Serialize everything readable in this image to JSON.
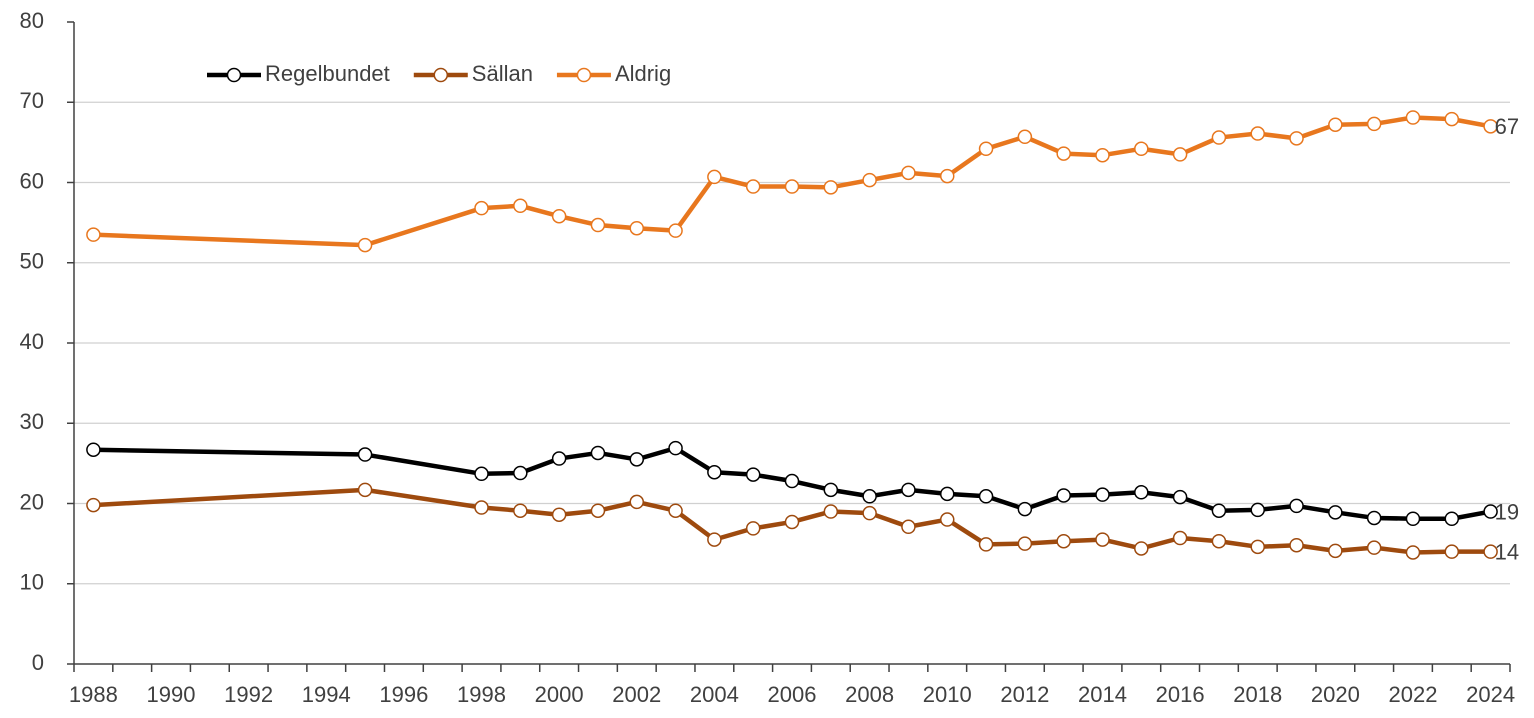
{
  "chart_data": {
    "type": "line",
    "x": [
      1988,
      1995,
      1998,
      1999,
      2000,
      2001,
      2002,
      2003,
      2004,
      2005,
      2006,
      2007,
      2008,
      2009,
      2010,
      2011,
      2012,
      2013,
      2014,
      2015,
      2016,
      2017,
      2018,
      2019,
      2020,
      2021,
      2022,
      2023,
      2024
    ],
    "series": [
      {
        "name": "Regelbundet",
        "color": "#000000",
        "values": [
          26.7,
          26.1,
          23.7,
          23.8,
          25.6,
          26.3,
          25.5,
          26.9,
          23.9,
          23.6,
          22.8,
          21.7,
          20.9,
          21.7,
          21.2,
          20.9,
          19.3,
          21.0,
          21.1,
          21.4,
          20.8,
          19.1,
          19.2,
          19.7,
          18.9,
          18.2,
          18.1,
          18.1,
          19
        ]
      },
      {
        "name": "Sällan",
        "color": "#9e4a0e",
        "values": [
          19.8,
          21.7,
          19.5,
          19.1,
          18.6,
          19.1,
          20.2,
          19.1,
          15.5,
          16.9,
          17.7,
          19.0,
          18.8,
          17.1,
          18.0,
          14.9,
          15.0,
          15.3,
          15.5,
          14.4,
          15.7,
          15.3,
          14.6,
          14.8,
          14.1,
          14.5,
          13.9,
          14.0,
          14
        ]
      },
      {
        "name": "Aldrig",
        "color": "#e8771e",
        "values": [
          53.5,
          52.2,
          56.8,
          57.1,
          55.8,
          54.7,
          54.3,
          54.0,
          60.7,
          59.5,
          59.5,
          59.4,
          60.3,
          61.2,
          60.8,
          64.2,
          65.7,
          63.6,
          63.4,
          64.2,
          63.5,
          65.6,
          66.1,
          65.5,
          67.2,
          67.3,
          68.1,
          67.9,
          67
        ]
      }
    ],
    "xlim": [
      1987.5,
      2024.5
    ],
    "xticks": [
      1988,
      1990,
      1992,
      1994,
      1996,
      1998,
      2000,
      2002,
      2004,
      2006,
      2008,
      2010,
      2012,
      2014,
      2016,
      2018,
      2020,
      2022,
      2024
    ],
    "ylim": [
      0,
      80
    ],
    "yticks": [
      0,
      10,
      20,
      30,
      40,
      50,
      60,
      70,
      80
    ],
    "grid": true,
    "legend": "upper-left"
  }
}
